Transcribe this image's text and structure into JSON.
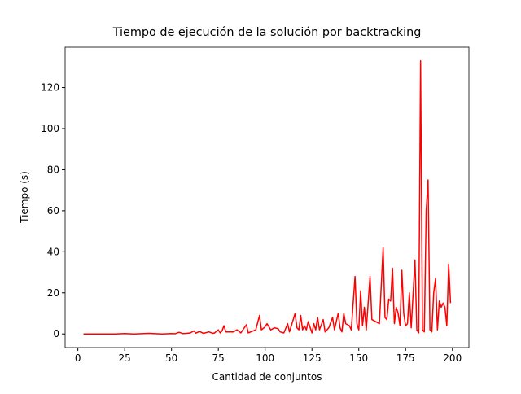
{
  "chart_data": {
    "type": "line",
    "title": "Tiempo de ejecución de la solución por backtracking",
    "x_label": "Cantidad de conjuntos",
    "y_label": "Tiempo (s)",
    "x": [
      3,
      10,
      20,
      25,
      30,
      38,
      45,
      50,
      52,
      54,
      56,
      58,
      60,
      62,
      63,
      65,
      67,
      70,
      72,
      73,
      75,
      76,
      77,
      78,
      79,
      80,
      83,
      85,
      87,
      90,
      91,
      95,
      97,
      98,
      100,
      101,
      103,
      105,
      107,
      108,
      110,
      112,
      113,
      116,
      117,
      118,
      119,
      120,
      121,
      122,
      123,
      125,
      126,
      127,
      128,
      129,
      131,
      132,
      134,
      136,
      137,
      139,
      140,
      141,
      142,
      143,
      145,
      146,
      148,
      149,
      150,
      151,
      152,
      153,
      154,
      156,
      157,
      159,
      161,
      163,
      164,
      165,
      166,
      167,
      168,
      169,
      170,
      171,
      172,
      173,
      174,
      175,
      176,
      177,
      178,
      180,
      181,
      182,
      183,
      184,
      185,
      186,
      187,
      188,
      189,
      190,
      191,
      192,
      193,
      194,
      195,
      196,
      197,
      198,
      199
    ],
    "series": [
      {
        "name": "tiempo",
        "color": "#ff0000",
        "values": [
          0,
          0,
          0,
          0.2,
          0,
          0.3,
          0,
          0.2,
          0.1,
          0.8,
          0.2,
          0.3,
          0.5,
          1.5,
          0.4,
          1.2,
          0.3,
          1,
          0.3,
          0.5,
          2,
          0.5,
          1.5,
          4,
          1,
          1,
          1,
          2,
          0.5,
          4.5,
          0.5,
          2,
          9,
          2,
          3.5,
          5,
          2,
          3,
          2.5,
          1,
          0.5,
          5,
          1,
          10,
          3,
          2,
          9,
          2,
          4,
          2,
          6,
          0.5,
          5,
          2,
          8,
          2,
          7,
          1,
          3,
          8,
          2,
          10,
          3,
          1,
          10,
          5,
          4,
          2,
          28,
          5,
          2,
          21,
          4,
          13,
          2,
          28,
          7,
          6,
          5,
          42,
          8,
          7,
          17,
          16,
          32,
          5,
          13,
          10,
          4,
          31,
          10,
          4,
          5,
          20,
          3,
          36,
          2,
          0.5,
          133,
          2,
          1,
          60,
          75,
          2,
          1,
          20,
          27,
          2,
          16,
          13,
          15,
          13,
          4,
          34,
          15
        ]
      }
    ],
    "xlim": [
      -6.8,
      208.8
    ],
    "ylim": [
      -6.65,
      139.65
    ],
    "xticks": [
      0,
      25,
      50,
      75,
      100,
      125,
      150,
      175,
      200
    ],
    "yticks": [
      0,
      20,
      40,
      60,
      80,
      100,
      120
    ]
  }
}
